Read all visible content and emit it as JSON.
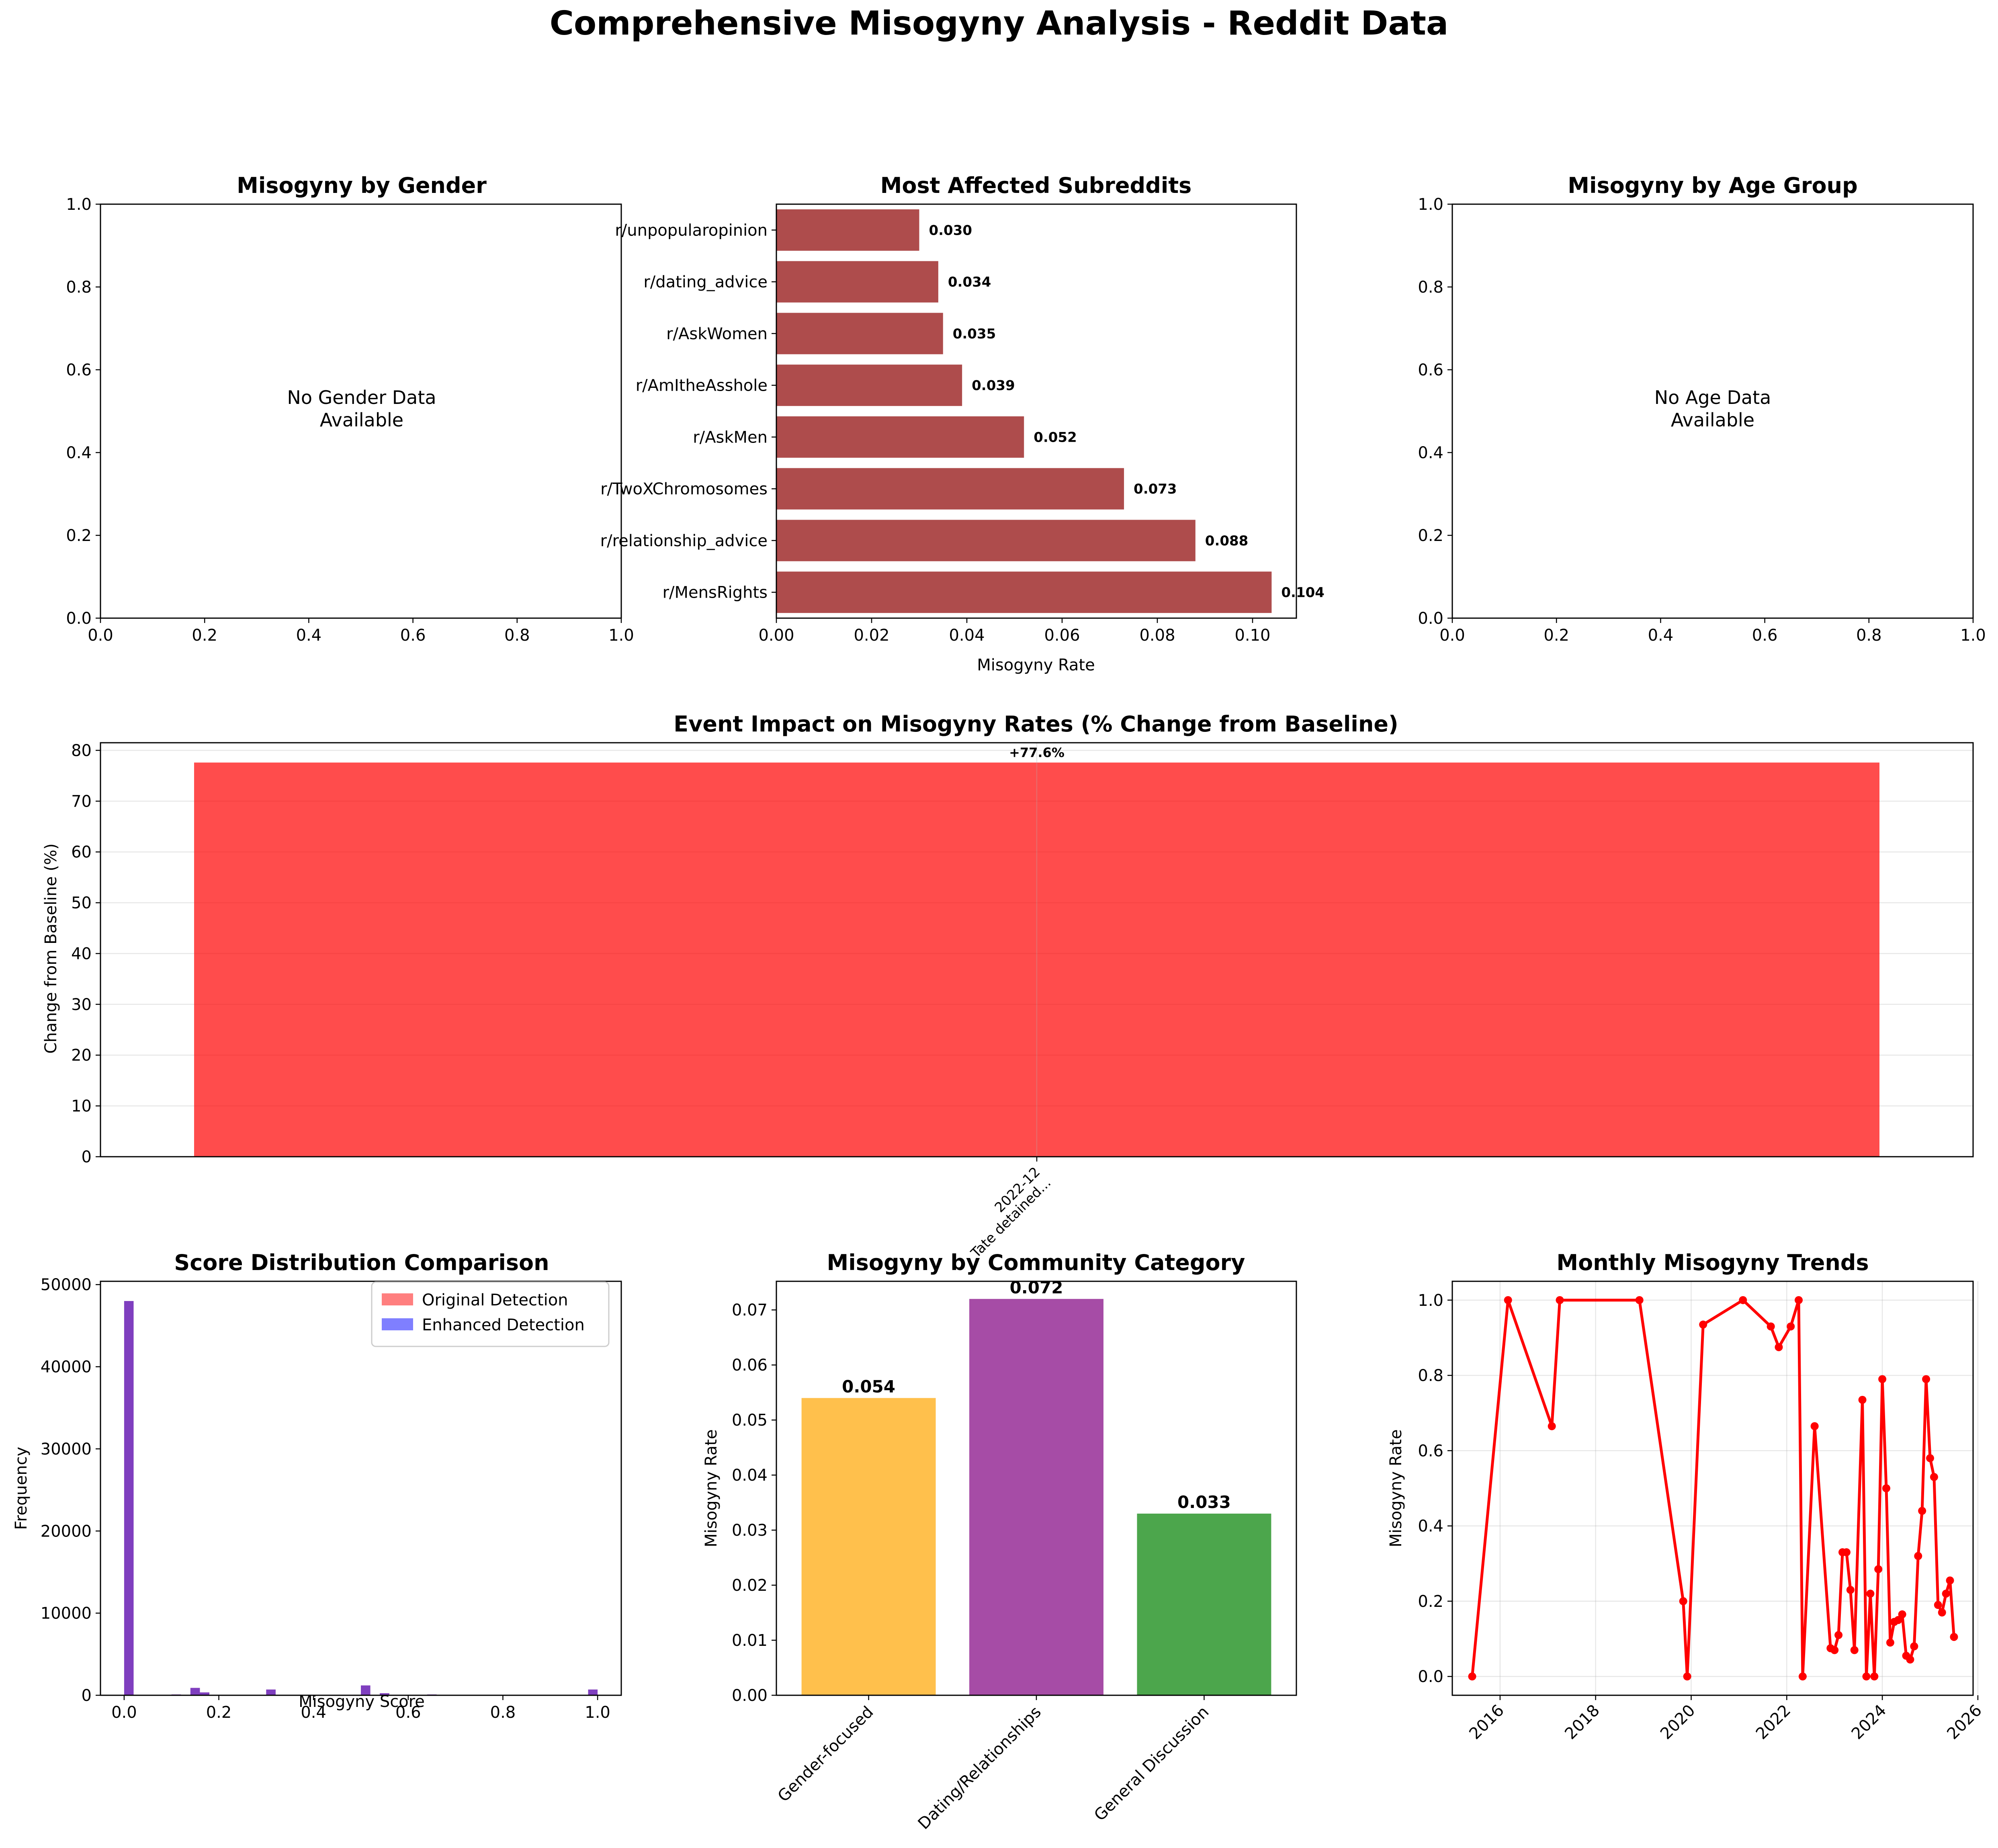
{
  "suptitle": "Comprehensive Misogyny Analysis - Reddit Data",
  "chart_data": [
    {
      "id": "gender",
      "type": "bar",
      "title": "Misogyny by Gender",
      "xlim": [
        0,
        1
      ],
      "ylim": [
        0,
        1
      ],
      "xticks": [
        "0.0",
        "0.2",
        "0.4",
        "0.6",
        "0.8",
        "1.0"
      ],
      "yticks": [
        "0.0",
        "0.2",
        "0.4",
        "0.6",
        "0.8",
        "1.0"
      ],
      "message": [
        "No Gender Data",
        "Available"
      ]
    },
    {
      "id": "subreddits",
      "type": "bar",
      "orientation": "horizontal",
      "title": "Most Affected Subreddits",
      "xlabel": "Misogyny Rate",
      "xlim": [
        0,
        0.1092
      ],
      "xticks": [
        "0.00",
        "0.02",
        "0.04",
        "0.06",
        "0.08",
        "0.10"
      ],
      "categories": [
        "r/MensRights",
        "r/relationship_advice",
        "r/TwoXChromosomes",
        "r/AskMen",
        "r/AmItheAsshole",
        "r/AskWomen",
        "r/dating_advice",
        "r/unpopularopinion"
      ],
      "values": [
        0.104,
        0.088,
        0.073,
        0.052,
        0.039,
        0.035,
        0.034,
        0.03
      ],
      "labels": [
        "0.104",
        "0.088",
        "0.073",
        "0.052",
        "0.039",
        "0.035",
        "0.034",
        "0.030"
      ],
      "color": "#8b0000"
    },
    {
      "id": "age",
      "type": "bar",
      "title": "Misogyny by Age Group",
      "xlim": [
        0,
        1
      ],
      "ylim": [
        0,
        1
      ],
      "xticks": [
        "0.0",
        "0.2",
        "0.4",
        "0.6",
        "0.8",
        "1.0"
      ],
      "yticks": [
        "0.0",
        "0.2",
        "0.4",
        "0.6",
        "0.8",
        "1.0"
      ],
      "message": [
        "No Age Data",
        "Available"
      ]
    },
    {
      "id": "events",
      "type": "bar",
      "title": "Event Impact on Misogyny Rates (% Change from Baseline)",
      "ylabel": "Change from Baseline (%)",
      "ylim": [
        0,
        81.5
      ],
      "yticks": [
        "0",
        "10",
        "20",
        "30",
        "40",
        "50",
        "60",
        "70",
        "80"
      ],
      "categories": [
        [
          "2022-12",
          "Tate detained..."
        ]
      ],
      "values": [
        77.6
      ],
      "labels": [
        "+77.6%"
      ],
      "color": "#ff0000",
      "grid": true
    },
    {
      "id": "scores",
      "type": "bar",
      "title": "Score Distribution Comparison",
      "xlabel": "Misogyny Score",
      "ylabel": "Frequency",
      "xlim": [
        -0.05,
        1.05
      ],
      "ylim": [
        0,
        50400
      ],
      "xticks": [
        "0.0",
        "0.2",
        "0.4",
        "0.6",
        "0.8",
        "1.0"
      ],
      "yticks": [
        "0",
        "10000",
        "20000",
        "30000",
        "40000",
        "50000"
      ],
      "legend": [
        "Original Detection",
        "Enhanced Detection"
      ],
      "legend_position": "top-right",
      "bins": [
        0.0,
        0.1,
        0.14,
        0.16,
        0.3,
        0.5,
        0.54,
        0.64,
        0.98
      ],
      "series": [
        {
          "name": "Original Detection",
          "values": [
            48000,
            100,
            900,
            350,
            700,
            1200,
            250,
            100,
            700
          ]
        },
        {
          "name": "Enhanced Detection",
          "values": [
            48000,
            100,
            900,
            350,
            700,
            1200,
            250,
            100,
            700
          ]
        }
      ]
    },
    {
      "id": "community",
      "type": "bar",
      "title": "Misogyny by Community Category",
      "ylabel": "Misogyny Rate",
      "ylim": [
        0,
        0.0752
      ],
      "yticks": [
        "0.00",
        "0.01",
        "0.02",
        "0.03",
        "0.04",
        "0.05",
        "0.06",
        "0.07"
      ],
      "categories": [
        "Gender-focused",
        "Dating/Relationships",
        "General Discussion"
      ],
      "values": [
        0.054,
        0.072,
        0.033
      ],
      "labels": [
        "0.054",
        "0.072",
        "0.033"
      ],
      "colors": [
        "#ffa500",
        "#800080",
        "#008000"
      ]
    },
    {
      "id": "monthly",
      "type": "line",
      "title": "Monthly Misogyny Trends",
      "ylabel": "Misogyny Rate",
      "xlim": [
        2015.0,
        2025.9
      ],
      "ylim": [
        -0.05,
        1.05
      ],
      "xticks": [
        "2016",
        "2018",
        "2020",
        "2022",
        "2024",
        "2026"
      ],
      "yticks": [
        "0.0",
        "0.2",
        "0.4",
        "0.6",
        "0.8",
        "1.0"
      ],
      "color": "#ff0000",
      "grid": true,
      "x": [
        "2015-06",
        "2016-03",
        "2017-02",
        "2017-04",
        "2018-12",
        "2019-11",
        "2019-12",
        "2020-04",
        "2021-02",
        "2021-09",
        "2021-11",
        "2022-02",
        "2022-04",
        "2022-05",
        "2022-08",
        "2022-12",
        "2023-01",
        "2023-02",
        "2023-03",
        "2023-04",
        "2023-05",
        "2023-06",
        "2023-08",
        "2023-09",
        "2023-10",
        "2023-11",
        "2023-12",
        "2024-01",
        "2024-02",
        "2024-03",
        "2024-04",
        "2024-05",
        "2024-06",
        "2024-07",
        "2024-08",
        "2024-09",
        "2024-10",
        "2024-11",
        "2024-12",
        "2025-01",
        "2025-02",
        "2025-03",
        "2025-04",
        "2025-05",
        "2025-06",
        "2025-07"
      ],
      "y": [
        0.0,
        1.0,
        0.665,
        1.0,
        1.0,
        0.2,
        0.0,
        0.935,
        1.0,
        0.93,
        0.875,
        0.93,
        1.0,
        0.0,
        0.665,
        0.075,
        0.07,
        0.11,
        0.33,
        0.33,
        0.23,
        0.07,
        0.735,
        0.0,
        0.22,
        0.0,
        0.285,
        0.79,
        0.5,
        0.09,
        0.145,
        0.15,
        0.165,
        0.055,
        0.045,
        0.08,
        0.32,
        0.44,
        0.79,
        0.58,
        0.53,
        0.19,
        0.17,
        0.22,
        0.255,
        0.105
      ]
    }
  ]
}
